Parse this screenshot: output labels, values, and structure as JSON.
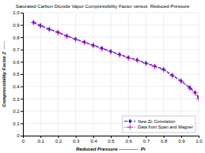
{
  "chart_data": {
    "type": "line",
    "title": "Saturated Carbon Dioxide Vapor Compressibility Factor versus  Reduced Pressure",
    "x_label": "Reduced Pressure ············  Pr",
    "y_label": "Compressibility Factor Z  ·····",
    "x": [
      0.06,
      0.1,
      0.15,
      0.2,
      0.25,
      0.3,
      0.35,
      0.4,
      0.45,
      0.5,
      0.55,
      0.6,
      0.65,
      0.7,
      0.75,
      0.8,
      0.85,
      0.9,
      0.95,
      0.98,
      1.0
    ],
    "series": [
      {
        "name": "New Zc Correlation",
        "color": "#0000cc",
        "marker": "diamond",
        "line_style": "dashed",
        "values": [
          0.92,
          0.895,
          0.865,
          0.84,
          0.81,
          0.785,
          0.76,
          0.735,
          0.71,
          0.685,
          0.66,
          0.635,
          0.615,
          0.59,
          0.565,
          0.54,
          0.49,
          0.445,
          0.39,
          0.35,
          0.31
        ]
      },
      {
        "name": "Data from Span and Wagner",
        "color": "#cc00cc",
        "marker": "plus",
        "line_style": "dotted",
        "values": [
          0.92,
          0.893,
          0.863,
          0.838,
          0.808,
          0.782,
          0.757,
          0.732,
          0.707,
          0.682,
          0.657,
          0.631,
          0.612,
          0.587,
          0.562,
          0.535,
          0.488,
          0.443,
          0.385,
          0.348,
          0.3
        ]
      }
    ],
    "xlim": [
      0,
      1.0
    ],
    "ylim": [
      0,
      1.0
    ],
    "xticks": [
      0,
      0.1,
      0.2,
      0.3,
      0.4,
      0.5,
      0.6,
      0.7,
      0.8,
      0.9,
      {
        "value": 1.0,
        "label": "1.0"
      }
    ],
    "yticks": [
      0,
      0.1,
      0.2,
      0.3,
      0.4,
      0.5,
      0.6,
      0.7,
      0.8,
      0.9,
      {
        "value": 1.0,
        "label": "1.0"
      }
    ],
    "grid": true,
    "legend": "lower right"
  }
}
